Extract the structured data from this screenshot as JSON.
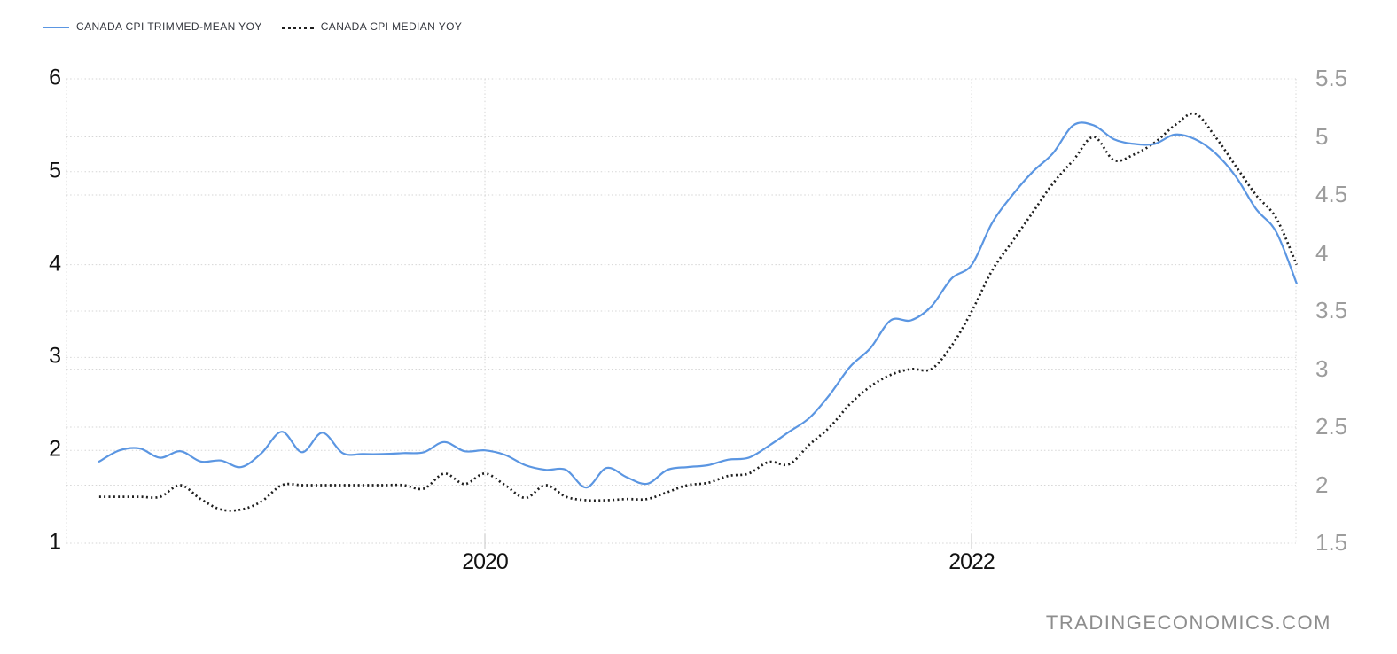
{
  "legend": {
    "items": [
      {
        "label": "CANADA CPI TRIMMED-MEAN YOY",
        "color": "#5b96e2",
        "style": "solid"
      },
      {
        "label": "CANADA CPI MEDIAN YOY",
        "color": "#1f1f1f",
        "style": "dotted"
      }
    ]
  },
  "watermark": "TRADINGECONOMICS.COM",
  "colors": {
    "trimmed_mean_line": "#5b96e2",
    "median_line": "#1f1f1f",
    "gridline": "#d6d6d6",
    "left_axis_text": "#121212",
    "right_axis_text": "#9c9c9c",
    "watermark_text": "#8d8d8d"
  },
  "chart_data": {
    "type": "line",
    "title": "",
    "x_tick_labels": [
      "2020",
      "2022"
    ],
    "grid": "dotted",
    "legend_position": "top-left",
    "months": [
      "2018-06",
      "2018-07",
      "2018-08",
      "2018-09",
      "2018-10",
      "2018-11",
      "2018-12",
      "2019-01",
      "2019-02",
      "2019-03",
      "2019-04",
      "2019-05",
      "2019-06",
      "2019-07",
      "2019-08",
      "2019-09",
      "2019-10",
      "2019-11",
      "2019-12",
      "2020-01",
      "2020-02",
      "2020-03",
      "2020-04",
      "2020-05",
      "2020-06",
      "2020-07",
      "2020-08",
      "2020-09",
      "2020-10",
      "2020-11",
      "2020-12",
      "2021-01",
      "2021-02",
      "2021-03",
      "2021-04",
      "2021-05",
      "2021-06",
      "2021-07",
      "2021-08",
      "2021-09",
      "2021-10",
      "2021-11",
      "2021-12",
      "2022-01",
      "2022-02",
      "2022-03",
      "2022-04",
      "2022-05",
      "2022-06",
      "2022-07",
      "2022-08",
      "2022-09",
      "2022-10",
      "2022-11",
      "2022-12",
      "2023-01",
      "2023-02",
      "2023-03",
      "2023-04",
      "2023-05"
    ],
    "series": [
      {
        "name": "CANADA CPI TRIMMED-MEAN YOY",
        "axis": "left",
        "color": "#5b96e2",
        "line_style": "solid",
        "values": [
          1.88,
          2.0,
          2.02,
          1.92,
          1.99,
          1.88,
          1.89,
          1.82,
          1.97,
          2.2,
          1.98,
          2.19,
          1.97,
          1.96,
          1.96,
          1.97,
          1.98,
          2.09,
          1.99,
          2.0,
          1.95,
          1.84,
          1.79,
          1.79,
          1.6,
          1.81,
          1.71,
          1.64,
          1.79,
          1.82,
          1.84,
          1.9,
          1.92,
          2.05,
          2.2,
          2.35,
          2.6,
          2.9,
          3.1,
          3.4,
          3.4,
          3.55,
          3.85,
          4.0,
          4.45,
          4.75,
          5.0,
          5.2,
          5.5,
          5.5,
          5.35,
          5.3,
          5.3,
          5.4,
          5.35,
          5.2,
          4.95,
          4.6,
          4.35,
          3.8
        ]
      },
      {
        "name": "CANADA CPI MEDIAN YOY",
        "axis": "right",
        "color": "#1f1f1f",
        "line_style": "dotted",
        "values": [
          1.9,
          1.9,
          1.9,
          1.9,
          2.0,
          1.88,
          1.79,
          1.79,
          1.86,
          2.0,
          2.0,
          2.0,
          2.0,
          2.0,
          2.0,
          2.0,
          1.97,
          2.1,
          2.01,
          2.1,
          2.0,
          1.89,
          2.0,
          1.9,
          1.87,
          1.87,
          1.88,
          1.88,
          1.94,
          2.0,
          2.02,
          2.08,
          2.1,
          2.2,
          2.18,
          2.35,
          2.5,
          2.7,
          2.85,
          2.95,
          3.0,
          3.0,
          3.2,
          3.5,
          3.85,
          4.1,
          4.35,
          4.6,
          4.8,
          5.0,
          4.8,
          4.85,
          4.95,
          5.1,
          5.2,
          5.0,
          4.75,
          4.5,
          4.3,
          3.9
        ]
      }
    ],
    "left_axis": {
      "ticks": [
        6,
        5,
        4,
        3,
        2,
        1
      ],
      "range": [
        1,
        6
      ]
    },
    "right_axis": {
      "ticks": [
        5.5,
        5,
        4.5,
        4,
        3.5,
        3,
        2.5,
        2,
        1.5
      ],
      "range": [
        1.5,
        5.5
      ]
    }
  }
}
